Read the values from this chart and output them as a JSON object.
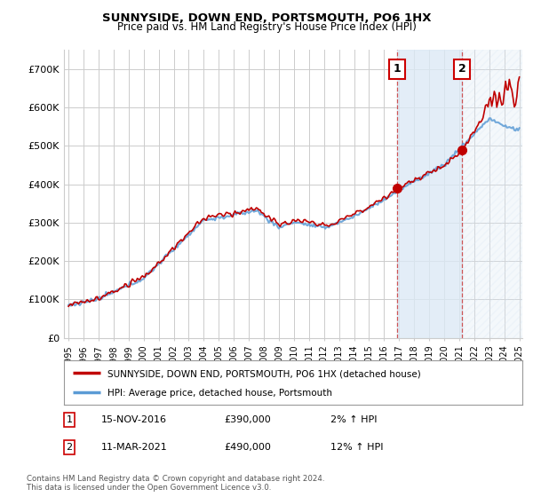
{
  "title": "SUNNYSIDE, DOWN END, PORTSMOUTH, PO6 1HX",
  "subtitle": "Price paid vs. HM Land Registry's House Price Index (HPI)",
  "legend_line1": "SUNNYSIDE, DOWN END, PORTSMOUTH, PO6 1HX (detached house)",
  "legend_line2": "HPI: Average price, detached house, Portsmouth",
  "annotation1_date": "15-NOV-2016",
  "annotation1_price": "£390,000",
  "annotation1_hpi": "2% ↑ HPI",
  "annotation1_year": 2016.88,
  "annotation1_value": 390000,
  "annotation2_date": "11-MAR-2021",
  "annotation2_price": "£490,000",
  "annotation2_hpi": "12% ↑ HPI",
  "annotation2_year": 2021.19,
  "annotation2_value": 490000,
  "footer1": "Contains HM Land Registry data © Crown copyright and database right 2024.",
  "footer2": "This data is licensed under the Open Government Licence v3.0.",
  "ylim": [
    0,
    750000
  ],
  "yticks": [
    0,
    100000,
    200000,
    300000,
    400000,
    500000,
    600000,
    700000
  ],
  "ytick_labels": [
    "£0",
    "£100K",
    "£200K",
    "£300K",
    "£400K",
    "£500K",
    "£600K",
    "£700K"
  ],
  "hpi_color": "#5b9bd5",
  "price_color": "#c00000",
  "plot_bg": "#ffffff",
  "grid_color": "#cccccc",
  "highlight_color": "#dce9f5",
  "vline_color": "#cc4444",
  "ann_box_edge": "#cc0000"
}
